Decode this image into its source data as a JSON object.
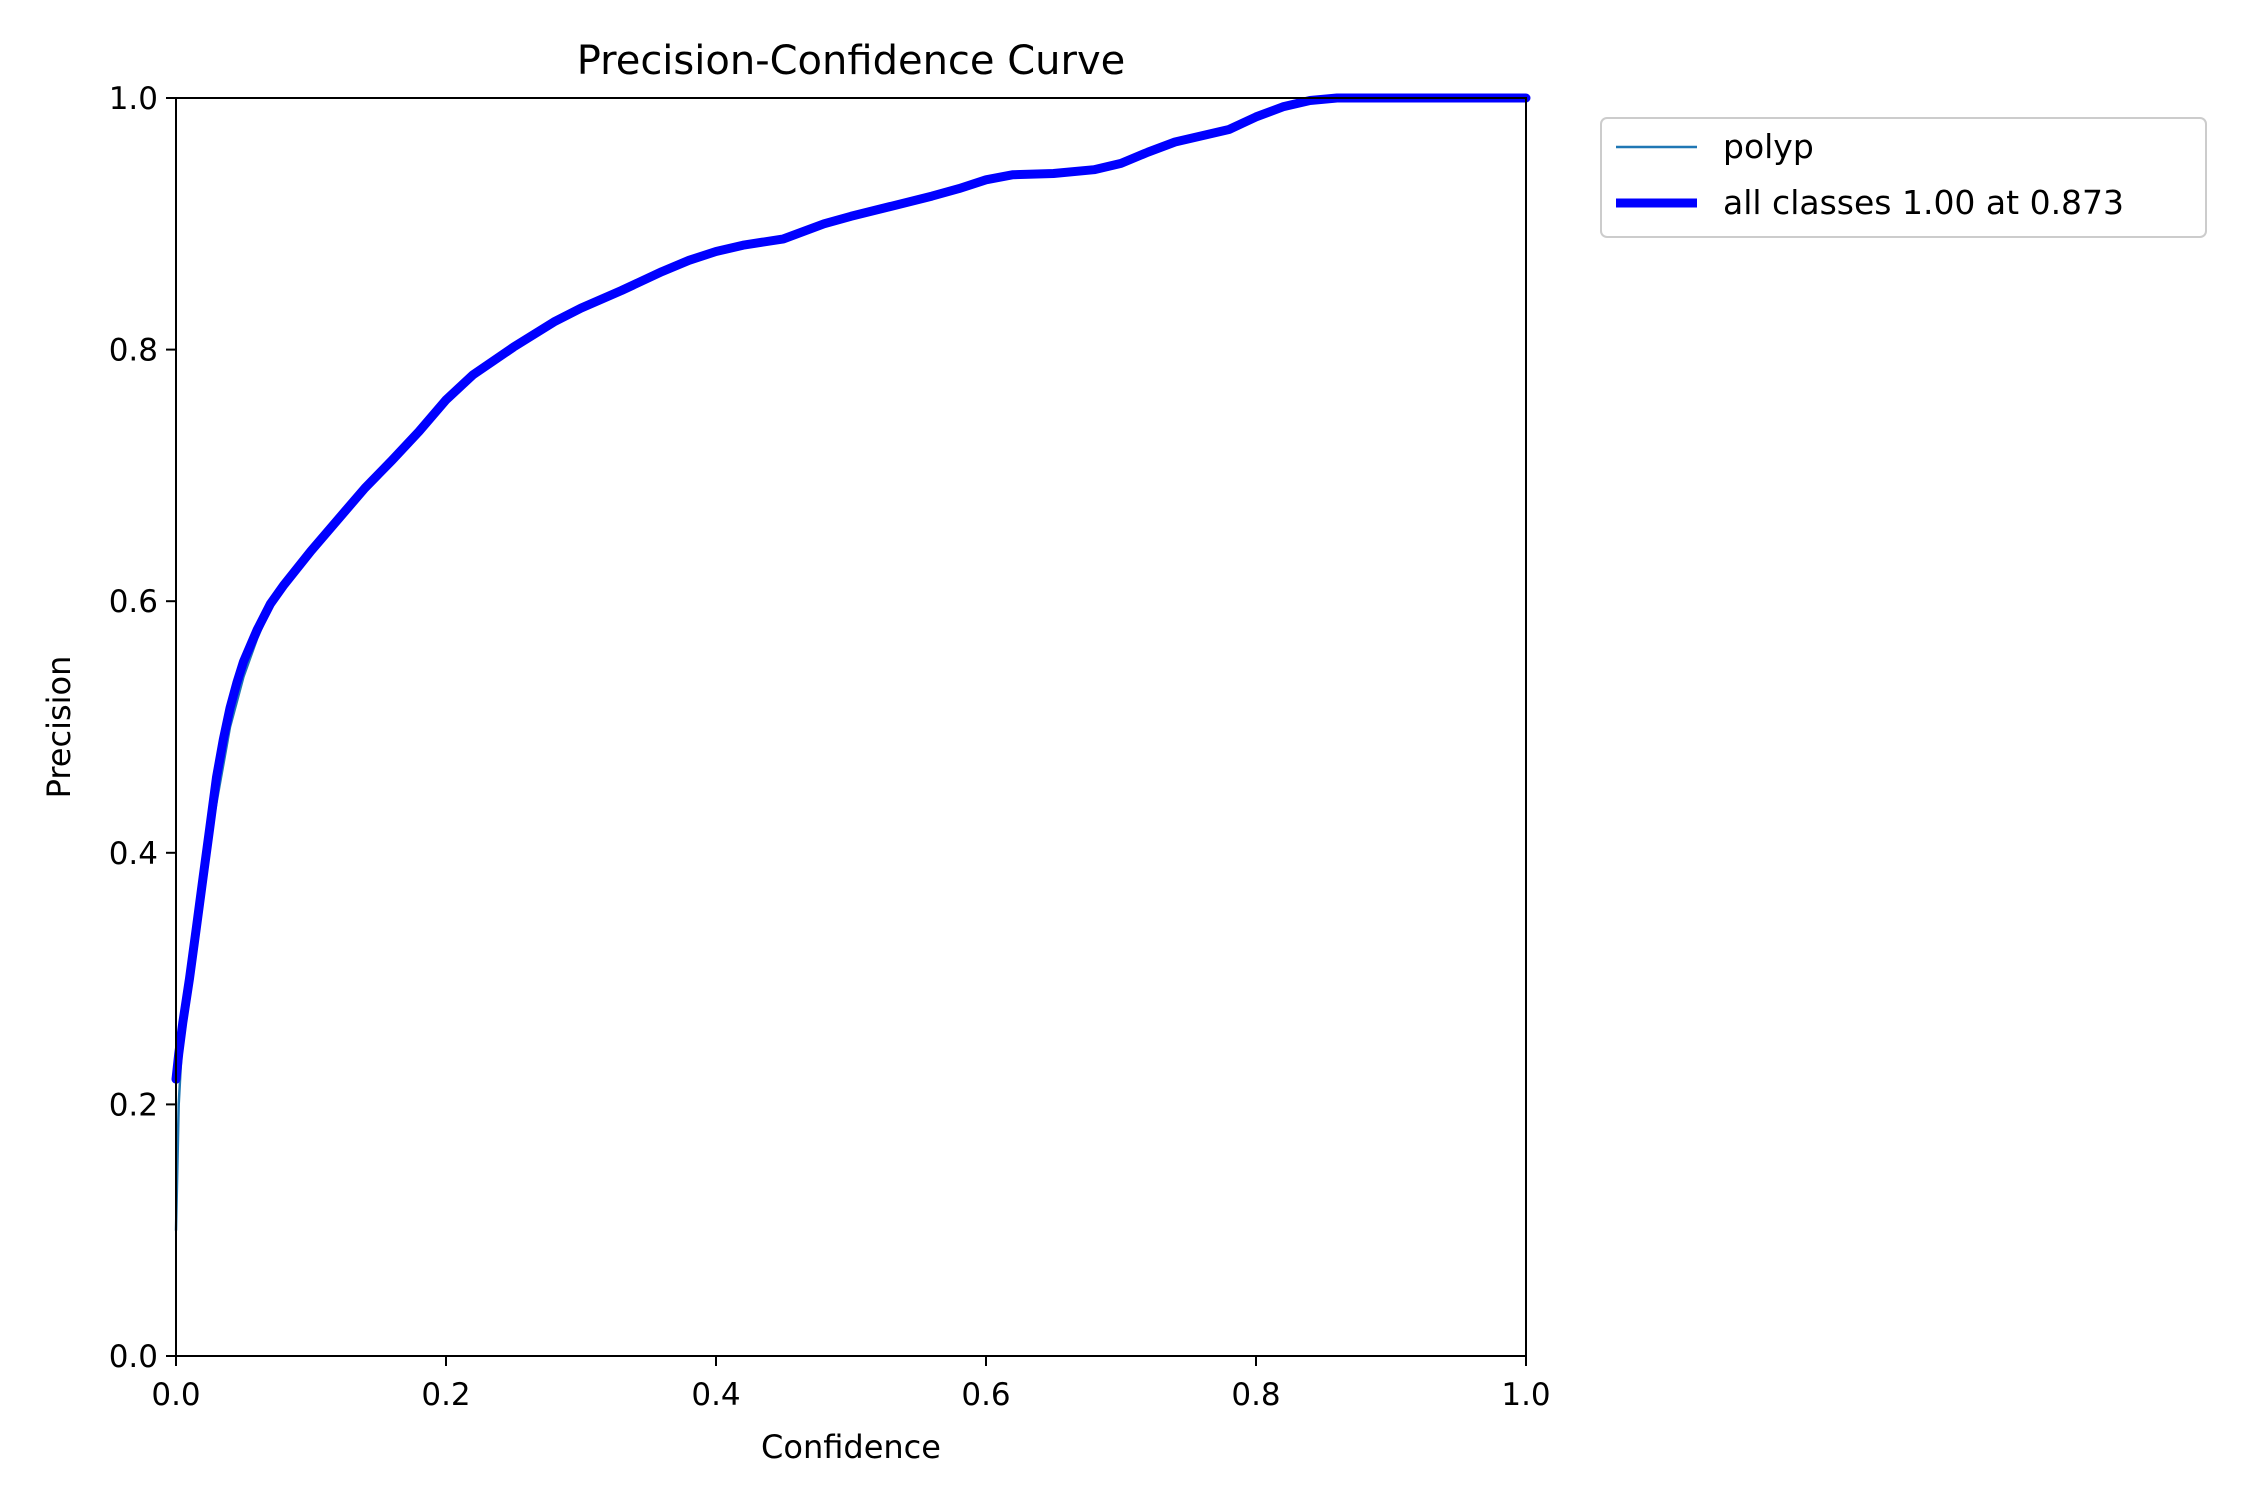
{
  "chart_data": {
    "type": "line",
    "title": "Precision-Confidence Curve",
    "xlabel": "Confidence",
    "ylabel": "Precision",
    "xlim": [
      0,
      1
    ],
    "ylim": [
      0,
      1
    ],
    "xticks": [
      "0.0",
      "0.2",
      "0.4",
      "0.6",
      "0.8",
      "1.0"
    ],
    "yticks": [
      "0.0",
      "0.2",
      "0.4",
      "0.6",
      "0.8",
      "1.0"
    ],
    "grid": false,
    "legend_position": "outside-top-right",
    "series": [
      {
        "name": "polyp",
        "color": "#1f77b4",
        "x": [
          0.0,
          0.002,
          0.005,
          0.01,
          0.015,
          0.02,
          0.025,
          0.03,
          0.035,
          0.04,
          0.045,
          0.05,
          0.06,
          0.07,
          0.08,
          0.1,
          0.12,
          0.14,
          0.16,
          0.18,
          0.2,
          0.22,
          0.25,
          0.28,
          0.3,
          0.33,
          0.36,
          0.38,
          0.4,
          0.42,
          0.45,
          0.48,
          0.5,
          0.53,
          0.56,
          0.58,
          0.6,
          0.62,
          0.65,
          0.68,
          0.7,
          0.72,
          0.74,
          0.76,
          0.78,
          0.8,
          0.82,
          0.84,
          0.86,
          0.873,
          0.9,
          0.95,
          1.0
        ],
        "y": [
          0.1,
          0.2,
          0.26,
          0.31,
          0.35,
          0.38,
          0.41,
          0.44,
          0.47,
          0.5,
          0.52,
          0.54,
          0.57,
          0.595,
          0.612,
          0.64,
          0.665,
          0.69,
          0.712,
          0.735,
          0.76,
          0.78,
          0.802,
          0.822,
          0.833,
          0.847,
          0.862,
          0.871,
          0.878,
          0.883,
          0.888,
          0.9,
          0.906,
          0.914,
          0.922,
          0.928,
          0.935,
          0.939,
          0.94,
          0.943,
          0.948,
          0.957,
          0.965,
          0.97,
          0.975,
          0.985,
          0.993,
          0.998,
          1.0,
          1.0,
          1.0,
          1.0,
          1.0
        ]
      },
      {
        "name": "all classes 1.00 at 0.873",
        "color": "#0000ff",
        "x": [
          0.0,
          0.002,
          0.005,
          0.01,
          0.015,
          0.02,
          0.025,
          0.03,
          0.035,
          0.04,
          0.045,
          0.05,
          0.06,
          0.07,
          0.08,
          0.1,
          0.12,
          0.14,
          0.16,
          0.18,
          0.2,
          0.22,
          0.25,
          0.28,
          0.3,
          0.33,
          0.36,
          0.38,
          0.4,
          0.42,
          0.45,
          0.48,
          0.5,
          0.53,
          0.56,
          0.58,
          0.6,
          0.62,
          0.65,
          0.68,
          0.7,
          0.72,
          0.74,
          0.76,
          0.78,
          0.8,
          0.82,
          0.84,
          0.86,
          0.873,
          0.9,
          0.95,
          1.0
        ],
        "y": [
          0.22,
          0.24,
          0.265,
          0.3,
          0.34,
          0.38,
          0.42,
          0.46,
          0.49,
          0.515,
          0.535,
          0.552,
          0.577,
          0.598,
          0.613,
          0.64,
          0.665,
          0.69,
          0.712,
          0.735,
          0.76,
          0.78,
          0.802,
          0.822,
          0.833,
          0.847,
          0.862,
          0.871,
          0.878,
          0.883,
          0.888,
          0.9,
          0.906,
          0.914,
          0.922,
          0.928,
          0.935,
          0.939,
          0.94,
          0.943,
          0.948,
          0.957,
          0.965,
          0.97,
          0.975,
          0.985,
          0.993,
          0.998,
          1.0,
          1.0,
          1.0,
          1.0,
          1.0
        ]
      }
    ]
  }
}
